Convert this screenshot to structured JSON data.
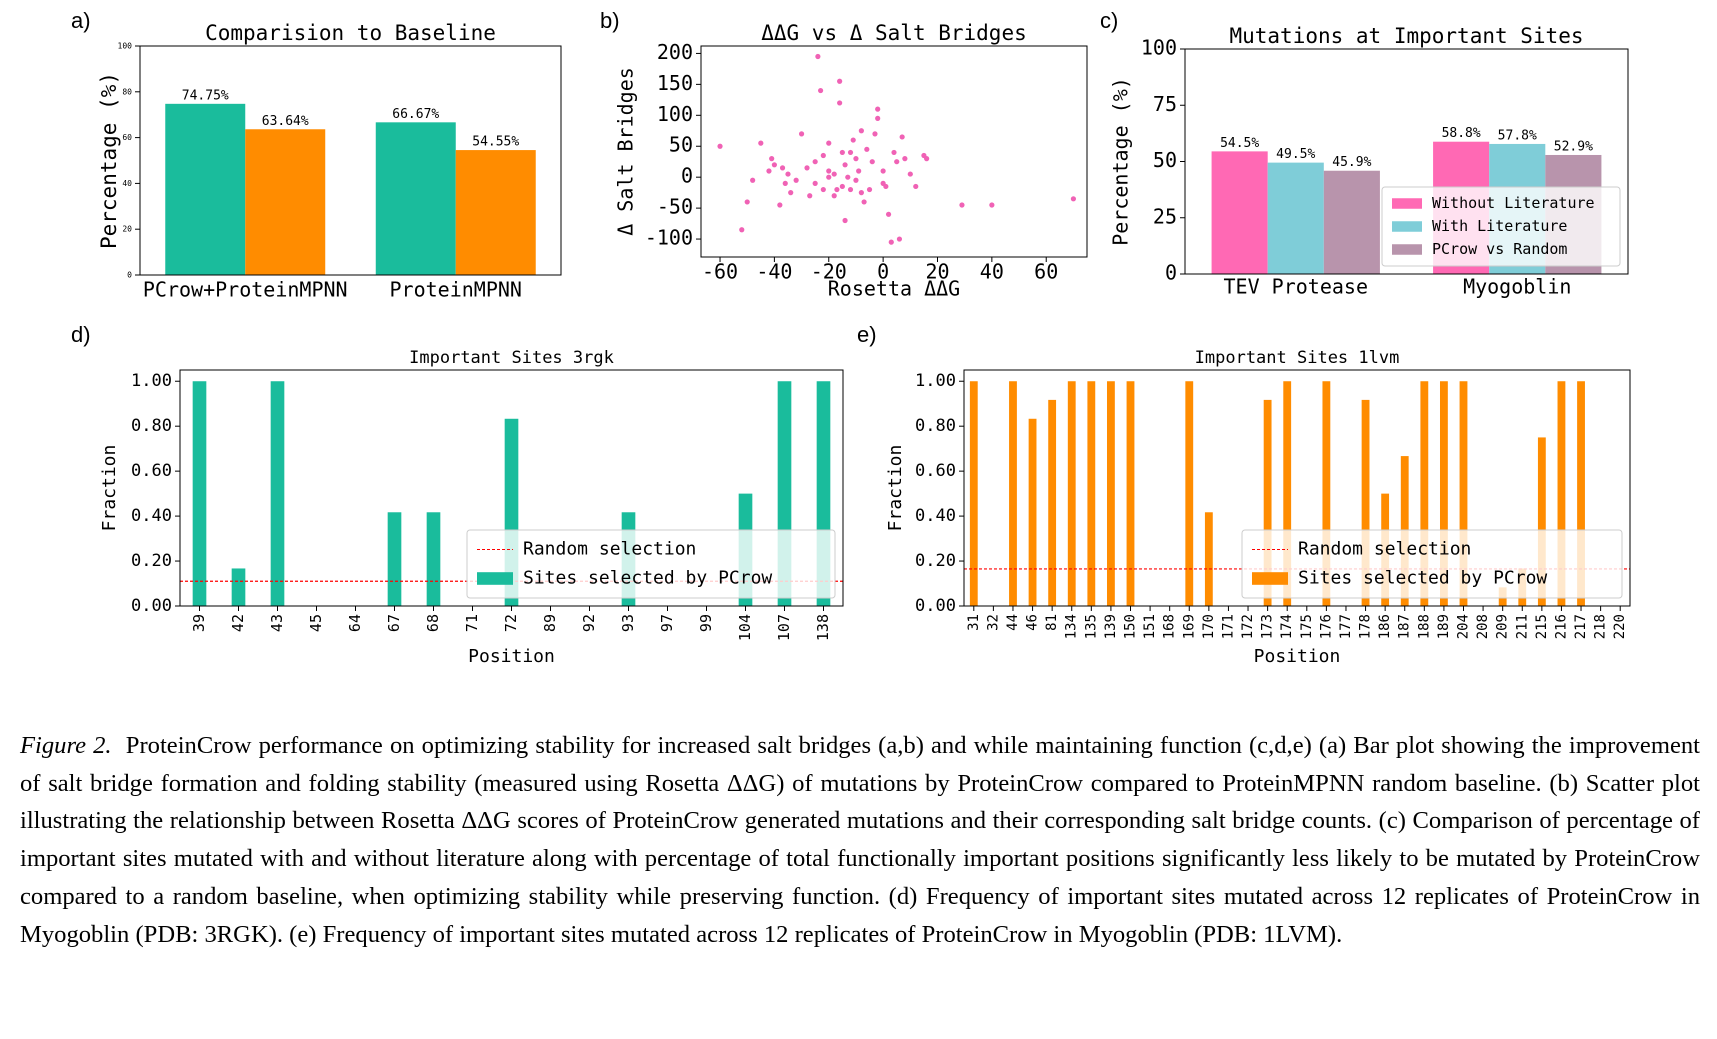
{
  "chart_data": [
    {
      "type": "bar",
      "panel": "a)",
      "title": "Comparision to Baseline",
      "ylabel": "Percentage (%)",
      "categories": [
        "PCrow+ProteinMPNN",
        "ProteinMPNN"
      ],
      "series": [
        {
          "color": "#1abc9c",
          "values": [
            74.75,
            66.67
          ],
          "value_labels": [
            "74.75%",
            "66.67%"
          ]
        },
        {
          "color": "#ff8c00",
          "values": [
            63.64,
            54.55
          ],
          "value_labels": [
            "63.64%",
            "54.55%"
          ]
        }
      ],
      "ylim": [
        0,
        100
      ],
      "yticks": [
        0,
        20,
        40,
        60,
        80,
        100
      ]
    },
    {
      "type": "scatter",
      "panel": "b)",
      "title": "ΔΔG vs Δ Salt Bridges",
      "xlabel": "Rosetta ΔΔG",
      "ylabel": "Δ Salt Bridges",
      "color": "#f062b5",
      "x": [
        -60,
        -52,
        -50,
        -48,
        -45,
        -42,
        -41,
        -40,
        -38,
        -37,
        -35,
        -34,
        -32,
        -30,
        -27,
        -25,
        -25,
        -24,
        -23,
        -22,
        -20,
        -20,
        -18,
        -17,
        -16,
        -16,
        -15,
        -15,
        -14,
        -14,
        -13,
        -12,
        -11,
        -10,
        -10,
        -9,
        -8,
        -8,
        -7,
        -6,
        -5,
        -4,
        -3,
        -2,
        -2,
        0,
        0,
        1,
        2,
        3,
        4,
        5,
        6,
        7,
        8,
        10,
        12,
        15,
        16,
        29,
        40,
        70,
        -20,
        -18,
        -12,
        -22,
        -28,
        -36
      ],
      "values": [
        50,
        -85,
        -40,
        -5,
        55,
        10,
        30,
        20,
        -45,
        15,
        5,
        -25,
        -5,
        70,
        -30,
        -10,
        25,
        195,
        140,
        -20,
        55,
        10,
        5,
        -20,
        155,
        120,
        40,
        -15,
        20,
        -70,
        0,
        -20,
        60,
        30,
        -5,
        10,
        75,
        -25,
        -40,
        45,
        -20,
        25,
        70,
        95,
        110,
        10,
        -10,
        -15,
        -60,
        -105,
        40,
        25,
        -100,
        65,
        30,
        5,
        -15,
        35,
        30,
        -45,
        -45,
        -35,
        0,
        -30,
        40,
        35,
        15,
        -10
      ],
      "xlim": [
        -67,
        75
      ],
      "xticks": [
        -60,
        -40,
        -20,
        0,
        20,
        40,
        60
      ],
      "ylim": [
        -129,
        212
      ],
      "yticks": [
        -100,
        -50,
        0,
        50,
        100,
        150,
        200
      ]
    },
    {
      "type": "bar",
      "panel": "c)",
      "title": "Mutations at Important Sites",
      "ylabel": "Percentage (%)",
      "categories": [
        "TEV Protease",
        "Myogoblin"
      ],
      "series": [
        {
          "name": "Without Literature",
          "color": "#ff69b4",
          "values": [
            54.5,
            58.8
          ],
          "value_labels": [
            "54.5%",
            "58.8%"
          ]
        },
        {
          "name": "With Literature",
          "color": "#7fcdd8",
          "values": [
            49.5,
            57.8
          ],
          "value_labels": [
            "49.5%",
            "57.8%"
          ]
        },
        {
          "name": "PCrow vs Random",
          "color": "#b894ac",
          "values": [
            45.9,
            52.9
          ],
          "value_labels": [
            "45.9%",
            "52.9%"
          ]
        }
      ],
      "ylim": [
        0,
        100
      ],
      "yticks": [
        0,
        25,
        50,
        75,
        100
      ],
      "legend": "lower right"
    },
    {
      "type": "bar",
      "panel": "d)",
      "title": "Important Sites 3rgk",
      "xlabel": "Position",
      "ylabel": "Fraction",
      "categories": [
        "39",
        "42",
        "43",
        "45",
        "64",
        "67",
        "68",
        "71",
        "72",
        "89",
        "92",
        "93",
        "97",
        "99",
        "104",
        "107",
        "138"
      ],
      "series": [
        {
          "name": "Sites selected by PCrow",
          "color": "#1abc9c",
          "values": [
            1.0,
            0.167,
            1.0,
            0,
            0,
            0.417,
            0.417,
            0,
            0.833,
            0,
            0,
            0.417,
            0,
            0,
            0.5,
            1.0,
            1.0
          ]
        }
      ],
      "hlines": [
        {
          "name": "Random selection",
          "value": 0.11,
          "color": "#ff0000"
        }
      ],
      "ylim": [
        0,
        1.05
      ],
      "yticks": [
        {
          "value": 0,
          "label": "0.00"
        },
        {
          "value": 0.2,
          "label": "0.20"
        },
        {
          "value": 0.4,
          "label": "0.40"
        },
        {
          "value": 0.6,
          "label": "0.60"
        },
        {
          "value": 0.8,
          "label": "0.80"
        },
        {
          "value": 1,
          "label": "1.00"
        }
      ],
      "legend": "lower right"
    },
    {
      "type": "bar",
      "panel": "e)",
      "title": "Important Sites 1lvm",
      "xlabel": "Position",
      "ylabel": "Fraction",
      "categories": [
        "31",
        "32",
        "44",
        "46",
        "81",
        "134",
        "135",
        "139",
        "150",
        "151",
        "168",
        "169",
        "170",
        "171",
        "172",
        "173",
        "174",
        "175",
        "176",
        "177",
        "178",
        "186",
        "187",
        "188",
        "189",
        "204",
        "208",
        "209",
        "211",
        "215",
        "216",
        "217",
        "218",
        "220"
      ],
      "series": [
        {
          "name": "Sites selected by PCrow",
          "color": "#ff8c00",
          "values": [
            1.0,
            0,
            1.0,
            0.833,
            0.917,
            1.0,
            1.0,
            1.0,
            1.0,
            0,
            0,
            1.0,
            0.417,
            0,
            0,
            0.917,
            1.0,
            0,
            1.0,
            0,
            0.917,
            0.5,
            0.667,
            1.0,
            1.0,
            1.0,
            0,
            0.083,
            0.167,
            0.75,
            1.0,
            1.0,
            0,
            0
          ]
        }
      ],
      "hlines": [
        {
          "name": "Random selection",
          "value": 0.165,
          "color": "#ff0000"
        }
      ],
      "ylim": [
        0,
        1.05
      ],
      "yticks": [
        {
          "value": 0,
          "label": "0.00"
        },
        {
          "value": 0.2,
          "label": "0.20"
        },
        {
          "value": 0.4,
          "label": "0.40"
        },
        {
          "value": 0.6,
          "label": "0.60"
        },
        {
          "value": 0.8,
          "label": "0.80"
        },
        {
          "value": 1,
          "label": "1.00"
        }
      ],
      "legend": "lower right"
    }
  ],
  "caption": {
    "label": "Figure 2.",
    "text": "ProteinCrow performance on optimizing stability for increased salt bridges (a,b) and while maintaining function (c,d,e) (a) Bar plot showing the improvement of salt bridge formation and folding stability (measured using Rosetta ΔΔG) of mutations by ProteinCrow compared to ProteinMPNN random baseline. (b) Scatter plot illustrating the relationship between Rosetta ΔΔG scores of ProteinCrow generated mutations and their corresponding salt bridge counts. (c) Comparison of percentage of important sites mutated with and without literature along with percentage of total functionally important positions significantly less likely to be mutated by ProteinCrow compared to a random baseline, when optimizing stability while preserving function. (d) Frequency of important sites mutated across 12 replicates of ProteinCrow in Myogoblin (PDB: 3RGK). (e) Frequency of important sites mutated across 12 replicates of ProteinCrow in Myogoblin (PDB: 1LVM)."
  }
}
